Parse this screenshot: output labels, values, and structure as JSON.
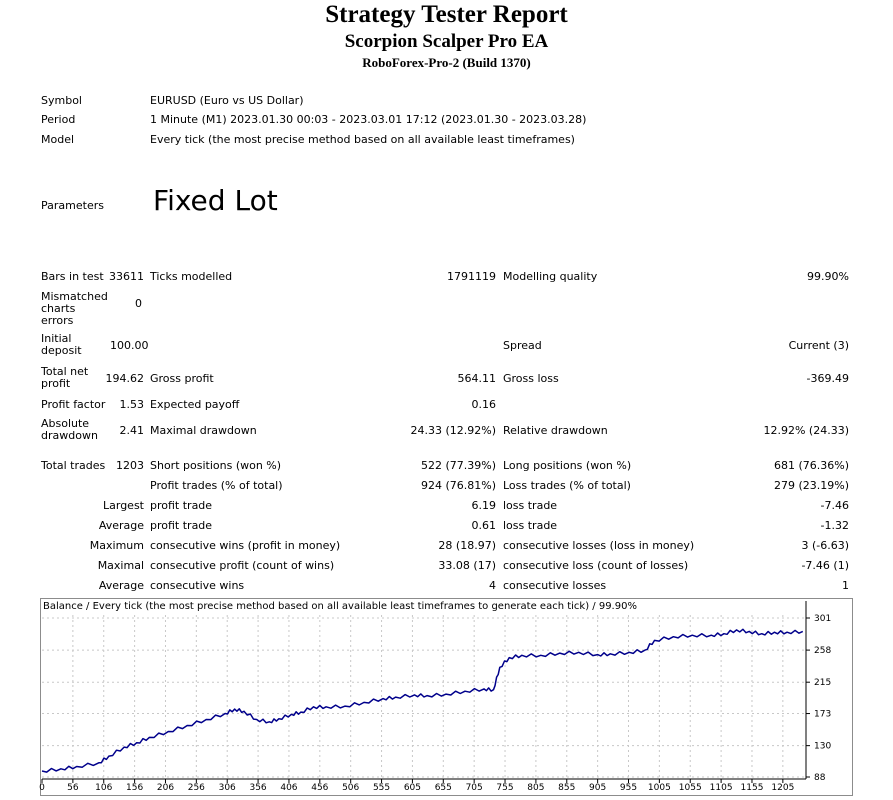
{
  "header": {
    "title": "Strategy Tester Report",
    "subtitle": "Scorpion Scalper Pro EA",
    "server": "RoboForex-Pro-2 (Build 1370)"
  },
  "info": {
    "symbol_label": "Symbol",
    "symbol_value": "EURUSD (Euro vs US Dollar)",
    "period_label": "Period",
    "period_value": "1 Minute (M1) 2023.01.30 00:03 - 2023.03.01 17:12 (2023.01.30 - 2023.03.28)",
    "model_label": "Model",
    "model_value": "Every tick (the most precise method based on all available least timeframes)",
    "parameters_label": "Parameters",
    "parameters_value": "Fixed Lot"
  },
  "stats": {
    "bars_label": "Bars in test",
    "bars_value": "33611",
    "ticks_label": "Ticks modelled",
    "ticks_value": "1791119",
    "quality_label": "Modelling quality",
    "quality_value": "99.90%",
    "mismatch_label": "Mismatched charts errors",
    "mismatch_value": "0",
    "deposit_label": "Initial deposit",
    "deposit_value": "100.00",
    "spread_label": "Spread",
    "spread_value": "Current (3)",
    "netprofit_label": "Total net profit",
    "netprofit_value": "194.62",
    "grossprofit_label": "Gross profit",
    "grossprofit_value": "564.11",
    "grossloss_label": "Gross loss",
    "grossloss_value": "-369.49",
    "pf_label": "Profit factor",
    "pf_value": "1.53",
    "payoff_label": "Expected payoff",
    "payoff_value": "0.16",
    "absdd_label": "Absolute drawdown",
    "absdd_value": "2.41",
    "maxdd_label": "Maximal drawdown",
    "maxdd_value": "24.33 (12.92%)",
    "reldd_label": "Relative drawdown",
    "reldd_value": "12.92% (24.33)",
    "trades_label": "Total trades",
    "trades_value": "1203",
    "short_label": "Short positions (won %)",
    "short_value": "522 (77.39%)",
    "long_label": "Long positions (won %)",
    "long_value": "681 (76.36%)",
    "proftrades_label": "Profit trades (% of total)",
    "proftrades_value": "924 (76.81%)",
    "losstrades_label": "Loss trades (% of total)",
    "losstrades_value": "279 (23.19%)",
    "largest_label": "Largest",
    "largest_profit_label": "profit trade",
    "largest_profit_value": "6.19",
    "largest_loss_label": "loss trade",
    "largest_loss_value": "-7.46",
    "average_label": "Average",
    "average_profit_label": "profit trade",
    "average_profit_value": "0.61",
    "average_loss_label": "loss trade",
    "average_loss_value": "-1.32",
    "maximum_label": "Maximum",
    "max_wins_label": "consecutive wins (profit in money)",
    "max_wins_value": "28 (18.97)",
    "max_losses_label": "consecutive losses (loss in money)",
    "max_losses_value": "3 (-6.63)",
    "maximal_label": "Maximal",
    "maximal_profit_label": "consecutive profit (count of wins)",
    "maximal_profit_value": "33.08 (17)",
    "maximal_loss_label": "consecutive loss (count of losses)",
    "maximal_loss_value": "-7.46 (1)",
    "average2_label": "Average",
    "avg_wins_label": "consecutive wins",
    "avg_wins_value": "4",
    "avg_losses_label": "consecutive losses",
    "avg_losses_value": "1"
  },
  "chart_data": {
    "type": "line",
    "title": "Balance / Every tick (the most precise method based on all available least timeframes to generate each tick) / 99.90%",
    "line_color": "#00008b",
    "grid": true,
    "x_ticks": [
      "0",
      "56",
      "106",
      "156",
      "206",
      "256",
      "306",
      "356",
      "406",
      "456",
      "506",
      "555",
      "605",
      "655",
      "705",
      "755",
      "805",
      "855",
      "905",
      "955",
      "1005",
      "1055",
      "1105",
      "1155",
      "1205"
    ],
    "y_ticks": [
      "301",
      "258",
      "215",
      "173",
      "130",
      "88"
    ],
    "ylim": [
      88,
      301
    ],
    "xlim": [
      0,
      1210
    ],
    "series": [
      {
        "x": [
          0,
          30,
          55,
          90,
          106,
          130,
          150,
          170,
          200,
          230,
          260,
          290,
          305,
          320,
          340,
          360,
          375,
          395,
          410,
          430,
          450,
          480,
          510,
          540,
          560,
          590,
          610,
          640,
          670,
          700,
          715,
          725,
          740,
          760,
          790,
          820,
          850,
          880,
          900,
          930,
          955,
          970,
          1000,
          1030,
          1060,
          1080,
          1100,
          1120,
          1140,
          1160,
          1180,
          1205
        ],
        "y": [
          96,
          99,
          102,
          107,
          116,
          128,
          134,
          141,
          149,
          157,
          165,
          173,
          179,
          176,
          165,
          162,
          166,
          172,
          175,
          182,
          182,
          183,
          188,
          193,
          195,
          198,
          197,
          199,
          203,
          206,
          205,
          235,
          248,
          251,
          251,
          254,
          255,
          252,
          253,
          255,
          258,
          271,
          276,
          278,
          278,
          280,
          285,
          283,
          280,
          282,
          282,
          283
        ]
      }
    ]
  }
}
